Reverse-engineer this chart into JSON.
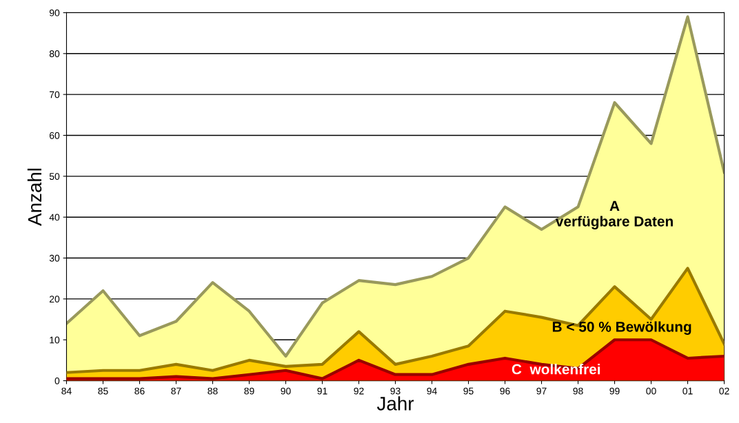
{
  "chart_data": {
    "type": "area",
    "xlabel": "Jahr",
    "ylabel": "Anzahl",
    "categories": [
      "84",
      "85",
      "86",
      "87",
      "88",
      "89",
      "90",
      "91",
      "92",
      "93",
      "94",
      "95",
      "96",
      "97",
      "98",
      "99",
      "00",
      "01",
      "02"
    ],
    "series": [
      {
        "name": "A\nverfügbare Daten",
        "color": "#ffff99",
        "values": [
          14,
          22,
          11,
          14.5,
          24,
          17,
          6,
          19,
          24.5,
          23.5,
          25.5,
          30,
          42.5,
          37,
          42.5,
          68,
          58,
          89,
          51
        ]
      },
      {
        "name": "B < 50 % Bewölkung",
        "color": "#ffcc00",
        "values": [
          2,
          2.5,
          2.5,
          4,
          2.5,
          5,
          3.5,
          4,
          12,
          4,
          6,
          8.5,
          17,
          15.5,
          13.5,
          23,
          15,
          27.5,
          9
        ]
      },
      {
        "name": "C  wolkenfrei",
        "color": "#ff0000",
        "values": [
          0.5,
          0.5,
          0.5,
          1,
          0.5,
          1.5,
          2.5,
          0.5,
          5,
          1.5,
          1.5,
          4,
          5.5,
          4,
          3,
          10,
          10,
          5.5,
          6
        ]
      }
    ],
    "ylim": [
      0,
      90
    ],
    "yticks": [
      0,
      10,
      20,
      30,
      40,
      50,
      60,
      70,
      80,
      90
    ],
    "grid": "y",
    "legend": false
  }
}
